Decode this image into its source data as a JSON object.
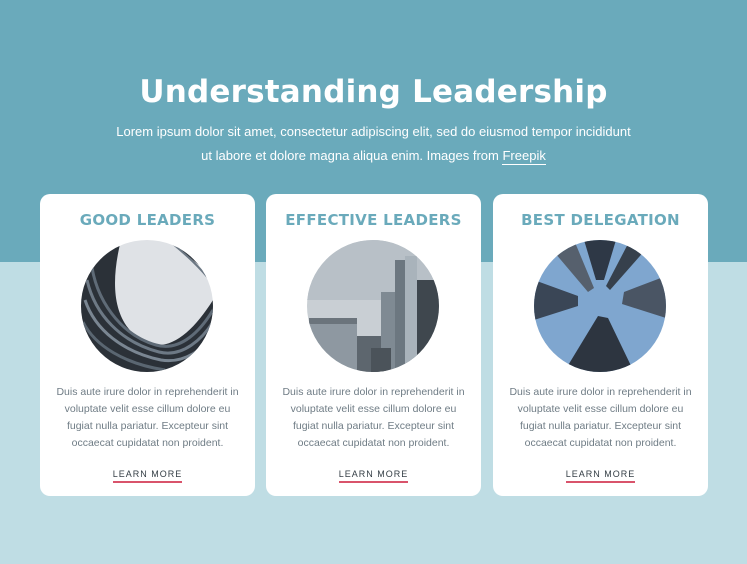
{
  "hero": {
    "title": "Understanding Leadership",
    "text": "Lorem ipsum dolor sit amet, consectetur adipiscing elit, sed do eiusmod tempor incididunt ut labore et dolore magna aliqua enim. Images from",
    "link_text": "Freepik"
  },
  "cards": [
    {
      "title": "GOOD LEADERS",
      "text": "Duis aute irure dolor in reprehenderit in voluptate velit esse cillum dolore eu fugiat nulla pariatur. Excepteur sint occaecat cupidatat non proident.",
      "link": "LEARN MORE"
    },
    {
      "title": "EFFECTIVE LEADERS",
      "text": "Duis aute irure dolor in reprehenderit in voluptate velit esse cillum dolore eu fugiat nulla pariatur. Excepteur sint occaecat cupidatat non proident.",
      "link": "LEARN MORE"
    },
    {
      "title": "BEST DELEGATION",
      "text": "Duis aute irure dolor in reprehenderit in voluptate velit esse cillum dolore eu fugiat nulla pariatur. Excepteur sint occaecat cupidatat non proident.",
      "link": "LEARN MORE"
    }
  ],
  "colors": {
    "top_band": "#6aaabb",
    "bottom_band": "#bfdde4",
    "card_title": "#6aaabb",
    "link_underline": "#d9536b"
  }
}
